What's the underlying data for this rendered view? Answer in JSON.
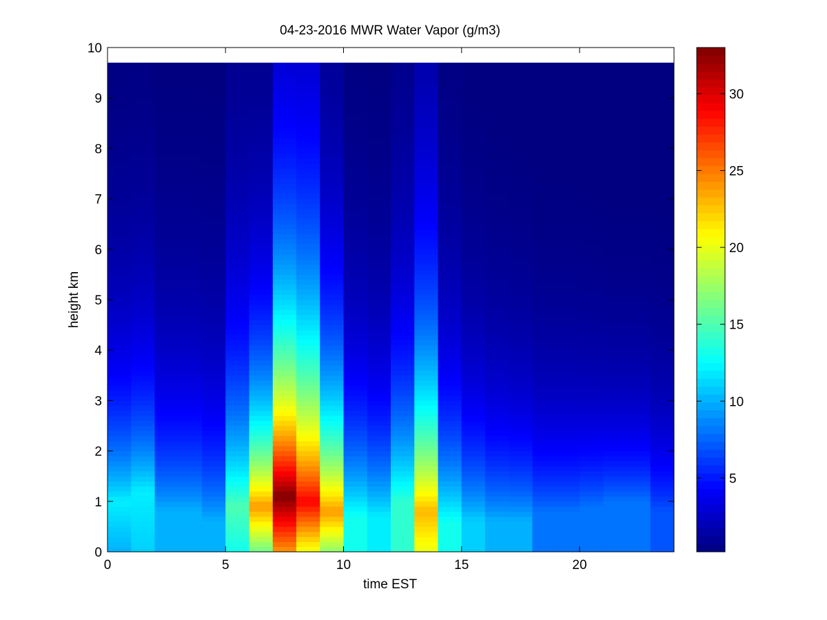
{
  "chart_data": {
    "type": "heatmap",
    "title": "04-23-2016 MWR Water Vapor (g/m3)",
    "xlabel": "time EST",
    "ylabel": "height km",
    "xlim": [
      0,
      24
    ],
    "ylim": [
      0,
      10
    ],
    "x_ticks": [
      "0",
      "5",
      "10",
      "15",
      "20"
    ],
    "y_ticks": [
      "0",
      "1",
      "2",
      "3",
      "4",
      "5",
      "6",
      "7",
      "8",
      "9",
      "10"
    ],
    "colorbar": {
      "colormap": "jet",
      "range": [
        0.2,
        33
      ],
      "ticks": [
        "5",
        "10",
        "15",
        "20",
        "25",
        "30"
      ]
    },
    "grid": false,
    "hourly_columns": [
      {
        "hour": 0,
        "surface": 10,
        "peak": 12,
        "peak_height": 1.0,
        "scale_height": 2.4,
        "top": 9.7
      },
      {
        "hour": 1,
        "surface": 11,
        "peak": 12,
        "peak_height": 1.2,
        "scale_height": 2.4,
        "top": 9.7
      },
      {
        "hour": 2,
        "surface": 10,
        "peak": 10,
        "peak_height": 0.8,
        "scale_height": 2.3,
        "top": 9.7
      },
      {
        "hour": 3,
        "surface": 10,
        "peak": 10,
        "peak_height": 0.8,
        "scale_height": 2.3,
        "top": 9.7
      },
      {
        "hour": 4,
        "surface": 10,
        "peak": 10,
        "peak_height": 0.6,
        "scale_height": 2.3,
        "top": 9.7
      },
      {
        "hour": 5,
        "surface": 13,
        "peak": 15,
        "peak_height": 0.9,
        "scale_height": 2.9,
        "top": 9.7
      },
      {
        "hour": 6,
        "surface": 16,
        "peak": 24,
        "peak_height": 0.9,
        "scale_height": 2.5,
        "top": 9.7
      },
      {
        "hour": 7,
        "surface": 24,
        "peak": 33,
        "peak_height": 1.1,
        "scale_height": 3.6,
        "top": 9.7
      },
      {
        "hour": 8,
        "surface": 20,
        "peak": 29,
        "peak_height": 1.0,
        "scale_height": 3.8,
        "top": 9.7
      },
      {
        "hour": 9,
        "surface": 17,
        "peak": 24,
        "peak_height": 0.8,
        "scale_height": 2.8,
        "top": 9.7
      },
      {
        "hour": 10,
        "surface": 13,
        "peak": 13,
        "peak_height": 0.7,
        "scale_height": 2.4,
        "top": 9.7
      },
      {
        "hour": 11,
        "surface": 12,
        "peak": 12,
        "peak_height": 0.7,
        "scale_height": 2.3,
        "top": 9.7
      },
      {
        "hour": 12,
        "surface": 14,
        "peak": 14,
        "peak_height": 1.0,
        "scale_height": 2.8,
        "top": 9.7
      },
      {
        "hour": 13,
        "surface": 20,
        "peak": 23,
        "peak_height": 0.8,
        "scale_height": 3.4,
        "top": 9.7
      },
      {
        "hour": 14,
        "surface": 13,
        "peak": 13,
        "peak_height": 0.6,
        "scale_height": 2.5,
        "top": 9.7
      },
      {
        "hour": 15,
        "surface": 11,
        "peak": 11,
        "peak_height": 0.6,
        "scale_height": 2.2,
        "top": 9.7
      },
      {
        "hour": 16,
        "surface": 10,
        "peak": 10,
        "peak_height": 0.6,
        "scale_height": 2.1,
        "top": 9.7
      },
      {
        "hour": 17,
        "surface": 10,
        "peak": 10,
        "peak_height": 0.6,
        "scale_height": 2.0,
        "top": 9.7
      },
      {
        "hour": 18,
        "surface": 8,
        "peak": 8,
        "peak_height": 0.8,
        "scale_height": 1.9,
        "top": 9.7
      },
      {
        "hour": 19,
        "surface": 8,
        "peak": 8,
        "peak_height": 0.8,
        "scale_height": 1.9,
        "top": 9.7
      },
      {
        "hour": 20,
        "surface": 8,
        "peak": 8,
        "peak_height": 0.9,
        "scale_height": 1.8,
        "top": 9.7
      },
      {
        "hour": 21,
        "surface": 8,
        "peak": 8,
        "peak_height": 1.0,
        "scale_height": 1.7,
        "top": 9.7
      },
      {
        "hour": 22,
        "surface": 8,
        "peak": 8,
        "peak_height": 1.0,
        "scale_height": 1.7,
        "top": 9.7
      },
      {
        "hour": 23,
        "surface": 7,
        "peak": 7,
        "peak_height": 0.8,
        "scale_height": 1.8,
        "top": 9.7
      }
    ]
  }
}
